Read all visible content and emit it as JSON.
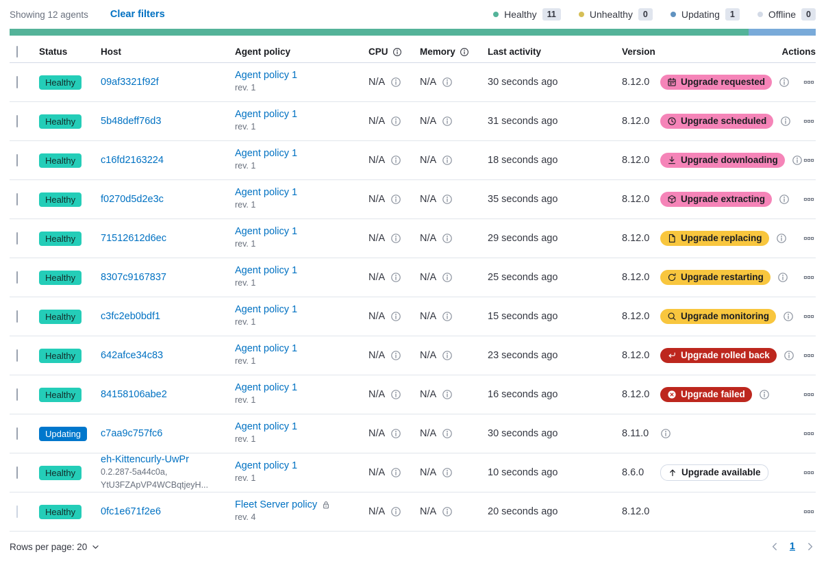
{
  "topbar": {
    "showing": "Showing 12 agents",
    "clear_filters": "Clear filters",
    "legend": [
      {
        "label": "Healthy",
        "count": "11",
        "color": "#54B399"
      },
      {
        "label": "Unhealthy",
        "count": "0",
        "color": "#D6BF57"
      },
      {
        "label": "Updating",
        "count": "1",
        "color": "#6092C0"
      },
      {
        "label": "Offline",
        "count": "0",
        "color": "#D3DAE6"
      }
    ]
  },
  "health_bar": {
    "segments": [
      {
        "name": "healthy",
        "color": "#54B399",
        "pct": 91.67
      },
      {
        "name": "updating",
        "color": "#79AAD9",
        "pct": 8.33
      }
    ]
  },
  "columns": {
    "status": "Status",
    "host": "Host",
    "policy": "Agent policy",
    "cpu": "CPU",
    "memory": "Memory",
    "last_activity": "Last activity",
    "version": "Version",
    "actions": "Actions"
  },
  "colors": {
    "healthy_badge": "#24CDB8",
    "updating_badge": "#0077CC",
    "pink_badge": "#F584B8",
    "yellow_badge": "#F8C63E",
    "red_badge": "#BD271E",
    "link": "#0071C2"
  },
  "rows": [
    {
      "status": "Healthy",
      "status_variant": "healthy",
      "host": "09af3321f92f",
      "host_sub": [],
      "policy": "Agent policy 1",
      "policy_rev": "rev. 1",
      "policy_locked": false,
      "cpu": "N/A",
      "memory": "N/A",
      "last_activity": "30 seconds ago",
      "version": "8.12.0",
      "upgrade": {
        "label": "Upgrade requested",
        "icon": "calendar-icon",
        "variant": "pink"
      },
      "info": true,
      "checkbox_disabled": false
    },
    {
      "status": "Healthy",
      "status_variant": "healthy",
      "host": "5b48deff76d3",
      "host_sub": [],
      "policy": "Agent policy 1",
      "policy_rev": "rev. 1",
      "policy_locked": false,
      "cpu": "N/A",
      "memory": "N/A",
      "last_activity": "31 seconds ago",
      "version": "8.12.0",
      "upgrade": {
        "label": "Upgrade scheduled",
        "icon": "clock-icon",
        "variant": "pink"
      },
      "info": true,
      "checkbox_disabled": false
    },
    {
      "status": "Healthy",
      "status_variant": "healthy",
      "host": "c16fd2163224",
      "host_sub": [],
      "policy": "Agent policy 1",
      "policy_rev": "rev. 1",
      "policy_locked": false,
      "cpu": "N/A",
      "memory": "N/A",
      "last_activity": "18 seconds ago",
      "version": "8.12.0",
      "upgrade": {
        "label": "Upgrade downloading",
        "icon": "download-icon",
        "variant": "pink"
      },
      "info": true,
      "checkbox_disabled": false
    },
    {
      "status": "Healthy",
      "status_variant": "healthy",
      "host": "f0270d5d2e3c",
      "host_sub": [],
      "policy": "Agent policy 1",
      "policy_rev": "rev. 1",
      "policy_locked": false,
      "cpu": "N/A",
      "memory": "N/A",
      "last_activity": "35 seconds ago",
      "version": "8.12.0",
      "upgrade": {
        "label": "Upgrade extracting",
        "icon": "package-icon",
        "variant": "pink"
      },
      "info": true,
      "checkbox_disabled": false
    },
    {
      "status": "Healthy",
      "status_variant": "healthy",
      "host": "71512612d6ec",
      "host_sub": [],
      "policy": "Agent policy 1",
      "policy_rev": "rev. 1",
      "policy_locked": false,
      "cpu": "N/A",
      "memory": "N/A",
      "last_activity": "29 seconds ago",
      "version": "8.12.0",
      "upgrade": {
        "label": "Upgrade replacing",
        "icon": "document-icon",
        "variant": "yellow"
      },
      "info": true,
      "checkbox_disabled": false
    },
    {
      "status": "Healthy",
      "status_variant": "healthy",
      "host": "8307c9167837",
      "host_sub": [],
      "policy": "Agent policy 1",
      "policy_rev": "rev. 1",
      "policy_locked": false,
      "cpu": "N/A",
      "memory": "N/A",
      "last_activity": "25 seconds ago",
      "version": "8.12.0",
      "upgrade": {
        "label": "Upgrade restarting",
        "icon": "refresh-icon",
        "variant": "yellow"
      },
      "info": true,
      "checkbox_disabled": false
    },
    {
      "status": "Healthy",
      "status_variant": "healthy",
      "host": "c3fc2eb0bdf1",
      "host_sub": [],
      "policy": "Agent policy 1",
      "policy_rev": "rev. 1",
      "policy_locked": false,
      "cpu": "N/A",
      "memory": "N/A",
      "last_activity": "15 seconds ago",
      "version": "8.12.0",
      "upgrade": {
        "label": "Upgrade monitoring",
        "icon": "inspect-icon",
        "variant": "yellow"
      },
      "info": true,
      "checkbox_disabled": false
    },
    {
      "status": "Healthy",
      "status_variant": "healthy",
      "host": "642afce34c83",
      "host_sub": [],
      "policy": "Agent policy 1",
      "policy_rev": "rev. 1",
      "policy_locked": false,
      "cpu": "N/A",
      "memory": "N/A",
      "last_activity": "23 seconds ago",
      "version": "8.12.0",
      "upgrade": {
        "label": "Upgrade rolled back",
        "icon": "return-icon",
        "variant": "red"
      },
      "info": true,
      "checkbox_disabled": false
    },
    {
      "status": "Healthy",
      "status_variant": "healthy",
      "host": "84158106abe2",
      "host_sub": [],
      "policy": "Agent policy 1",
      "policy_rev": "rev. 1",
      "policy_locked": false,
      "cpu": "N/A",
      "memory": "N/A",
      "last_activity": "16 seconds ago",
      "version": "8.12.0",
      "upgrade": {
        "label": "Upgrade failed",
        "icon": "error-icon",
        "variant": "red"
      },
      "info": true,
      "checkbox_disabled": false
    },
    {
      "status": "Updating",
      "status_variant": "updating",
      "host": "c7aa9c757fc6",
      "host_sub": [],
      "policy": "Agent policy 1",
      "policy_rev": "rev. 1",
      "policy_locked": false,
      "cpu": "N/A",
      "memory": "N/A",
      "last_activity": "30 seconds ago",
      "version": "8.11.0",
      "upgrade": null,
      "info": true,
      "checkbox_disabled": false
    },
    {
      "status": "Healthy",
      "status_variant": "healthy",
      "host": "eh-Kittencurly-UwPr",
      "host_sub": [
        "0.2.287-5a44c0a,",
        "YtU3FZApVP4WCBqtjeyH..."
      ],
      "policy": "Agent policy 1",
      "policy_rev": "rev. 1",
      "policy_locked": false,
      "cpu": "N/A",
      "memory": "N/A",
      "last_activity": "10 seconds ago",
      "version": "8.6.0",
      "upgrade": {
        "label": "Upgrade available",
        "icon": "arrow-up-icon",
        "variant": "hollow"
      },
      "info": false,
      "checkbox_disabled": false
    },
    {
      "status": "Healthy",
      "status_variant": "healthy",
      "host": "0fc1e671f2e6",
      "host_sub": [],
      "policy": "Fleet Server policy",
      "policy_rev": "rev. 4",
      "policy_locked": true,
      "cpu": "N/A",
      "memory": "N/A",
      "last_activity": "20 seconds ago",
      "version": "8.12.0",
      "upgrade": null,
      "info": false,
      "checkbox_disabled": true
    }
  ],
  "footer": {
    "rows_per_page": "Rows per page: 20",
    "page": "1"
  }
}
